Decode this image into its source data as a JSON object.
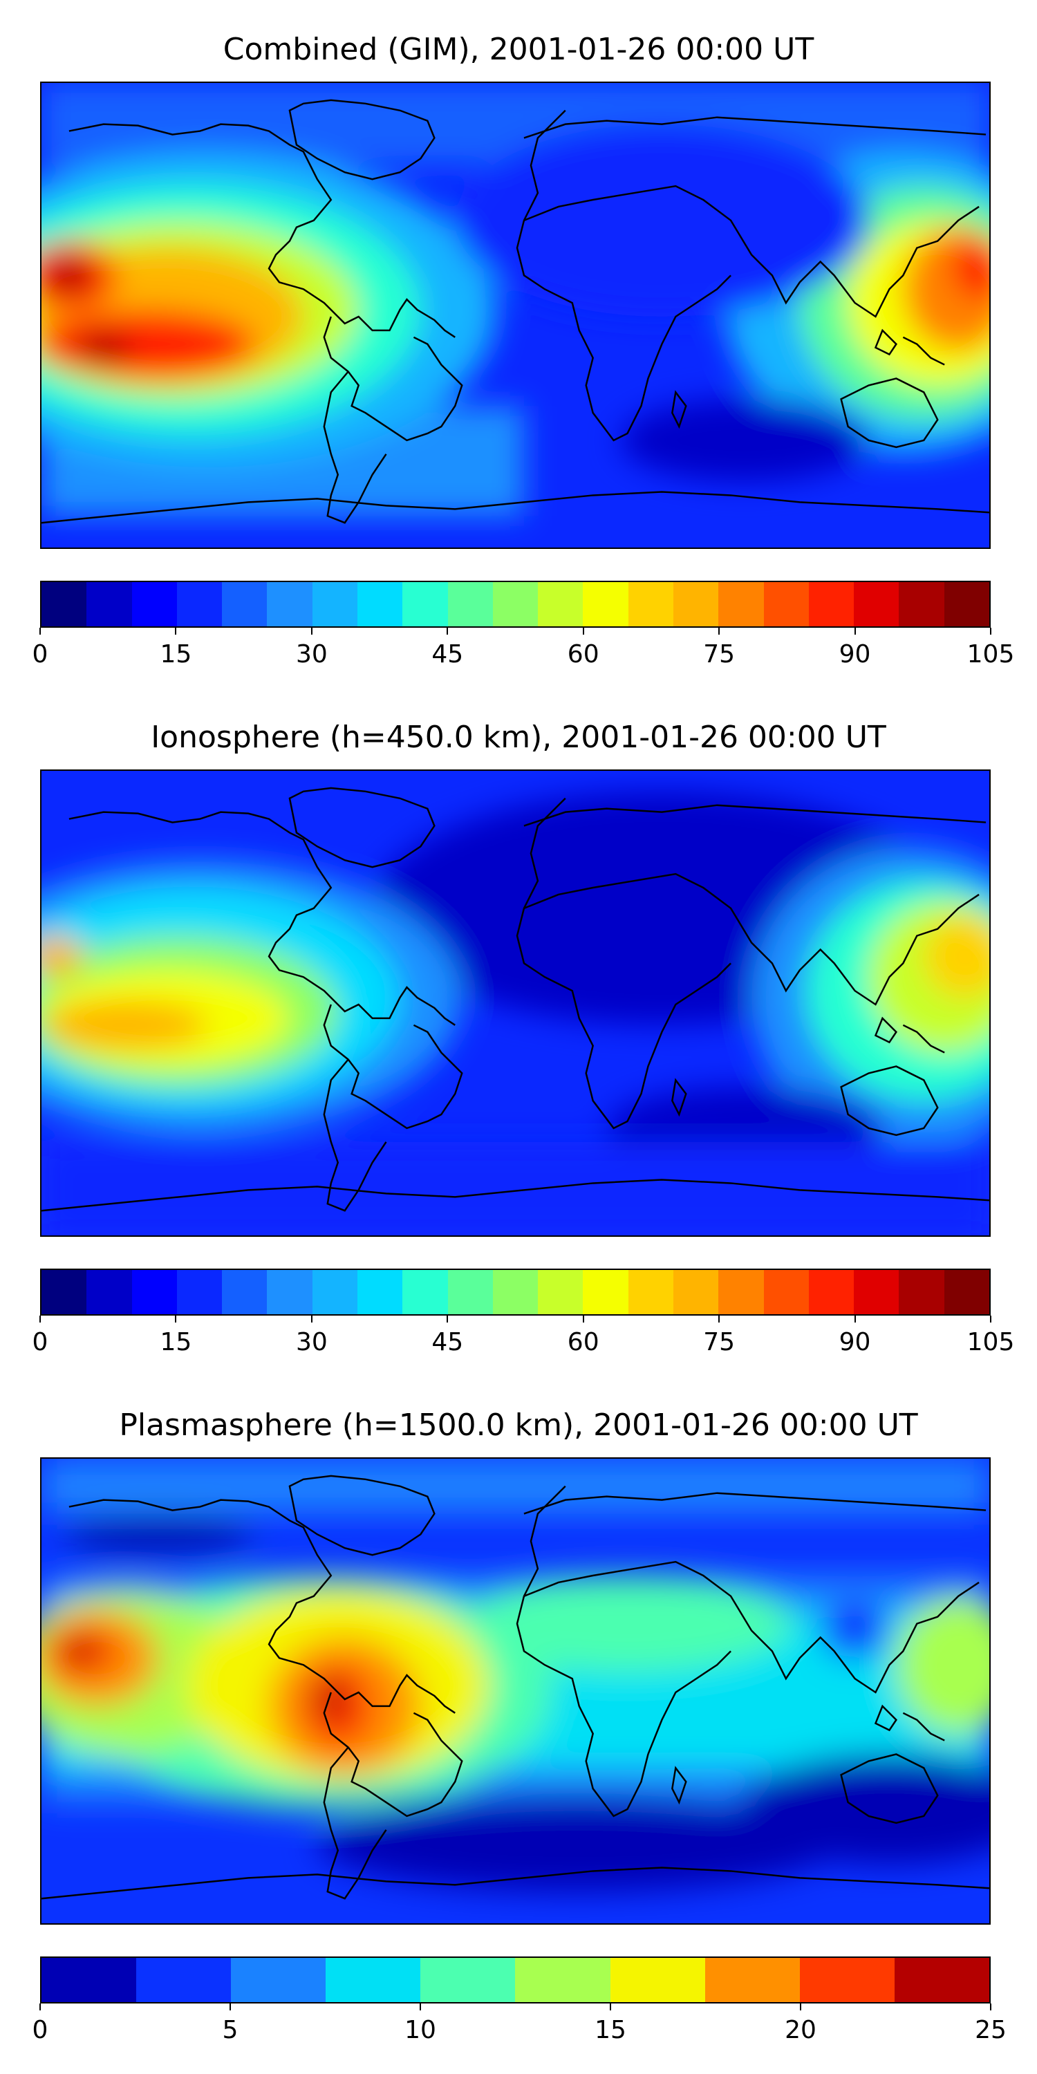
{
  "panels": [
    {
      "title": "Combined (GIM), 2001-01-26 00:00 UT",
      "colorbar": {
        "ticks": [
          "0",
          "15",
          "30",
          "45",
          "60",
          "75",
          "90",
          "105"
        ],
        "colors": [
          "#00007f",
          "#0000c8",
          "#0000ff",
          "#0a28ff",
          "#1460ff",
          "#1e90ff",
          "#14b4ff",
          "#00dcff",
          "#28ffd2",
          "#5aff9a",
          "#8cff64",
          "#c8ff2a",
          "#f5ff00",
          "#ffd200",
          "#ffb400",
          "#ff8200",
          "#ff5000",
          "#ff2200",
          "#e00000",
          "#a80000",
          "#800000"
        ]
      }
    },
    {
      "title": "Ionosphere  (h=450.0 km), 2001-01-26 00:00 UT",
      "colorbar": {
        "ticks": [
          "0",
          "15",
          "30",
          "45",
          "60",
          "75",
          "90",
          "105"
        ],
        "colors": [
          "#00007f",
          "#0000c8",
          "#0000ff",
          "#0a28ff",
          "#1460ff",
          "#1e90ff",
          "#14b4ff",
          "#00dcff",
          "#28ffd2",
          "#5aff9a",
          "#8cff64",
          "#c8ff2a",
          "#f5ff00",
          "#ffd200",
          "#ffb400",
          "#ff8200",
          "#ff5000",
          "#ff2200",
          "#e00000",
          "#a80000",
          "#800000"
        ]
      }
    },
    {
      "title": "Plasmasphere (h=1500.0 km), 2001-01-26 00:00 UT",
      "colorbar": {
        "ticks": [
          "0",
          "5",
          "10",
          "15",
          "20",
          "25"
        ],
        "colors": [
          "#0000b4",
          "#0a32ff",
          "#1a82ff",
          "#00e0f5",
          "#4cffb0",
          "#a8ff50",
          "#f5f500",
          "#ff9000",
          "#ff3a00",
          "#b40000"
        ]
      }
    }
  ]
}
